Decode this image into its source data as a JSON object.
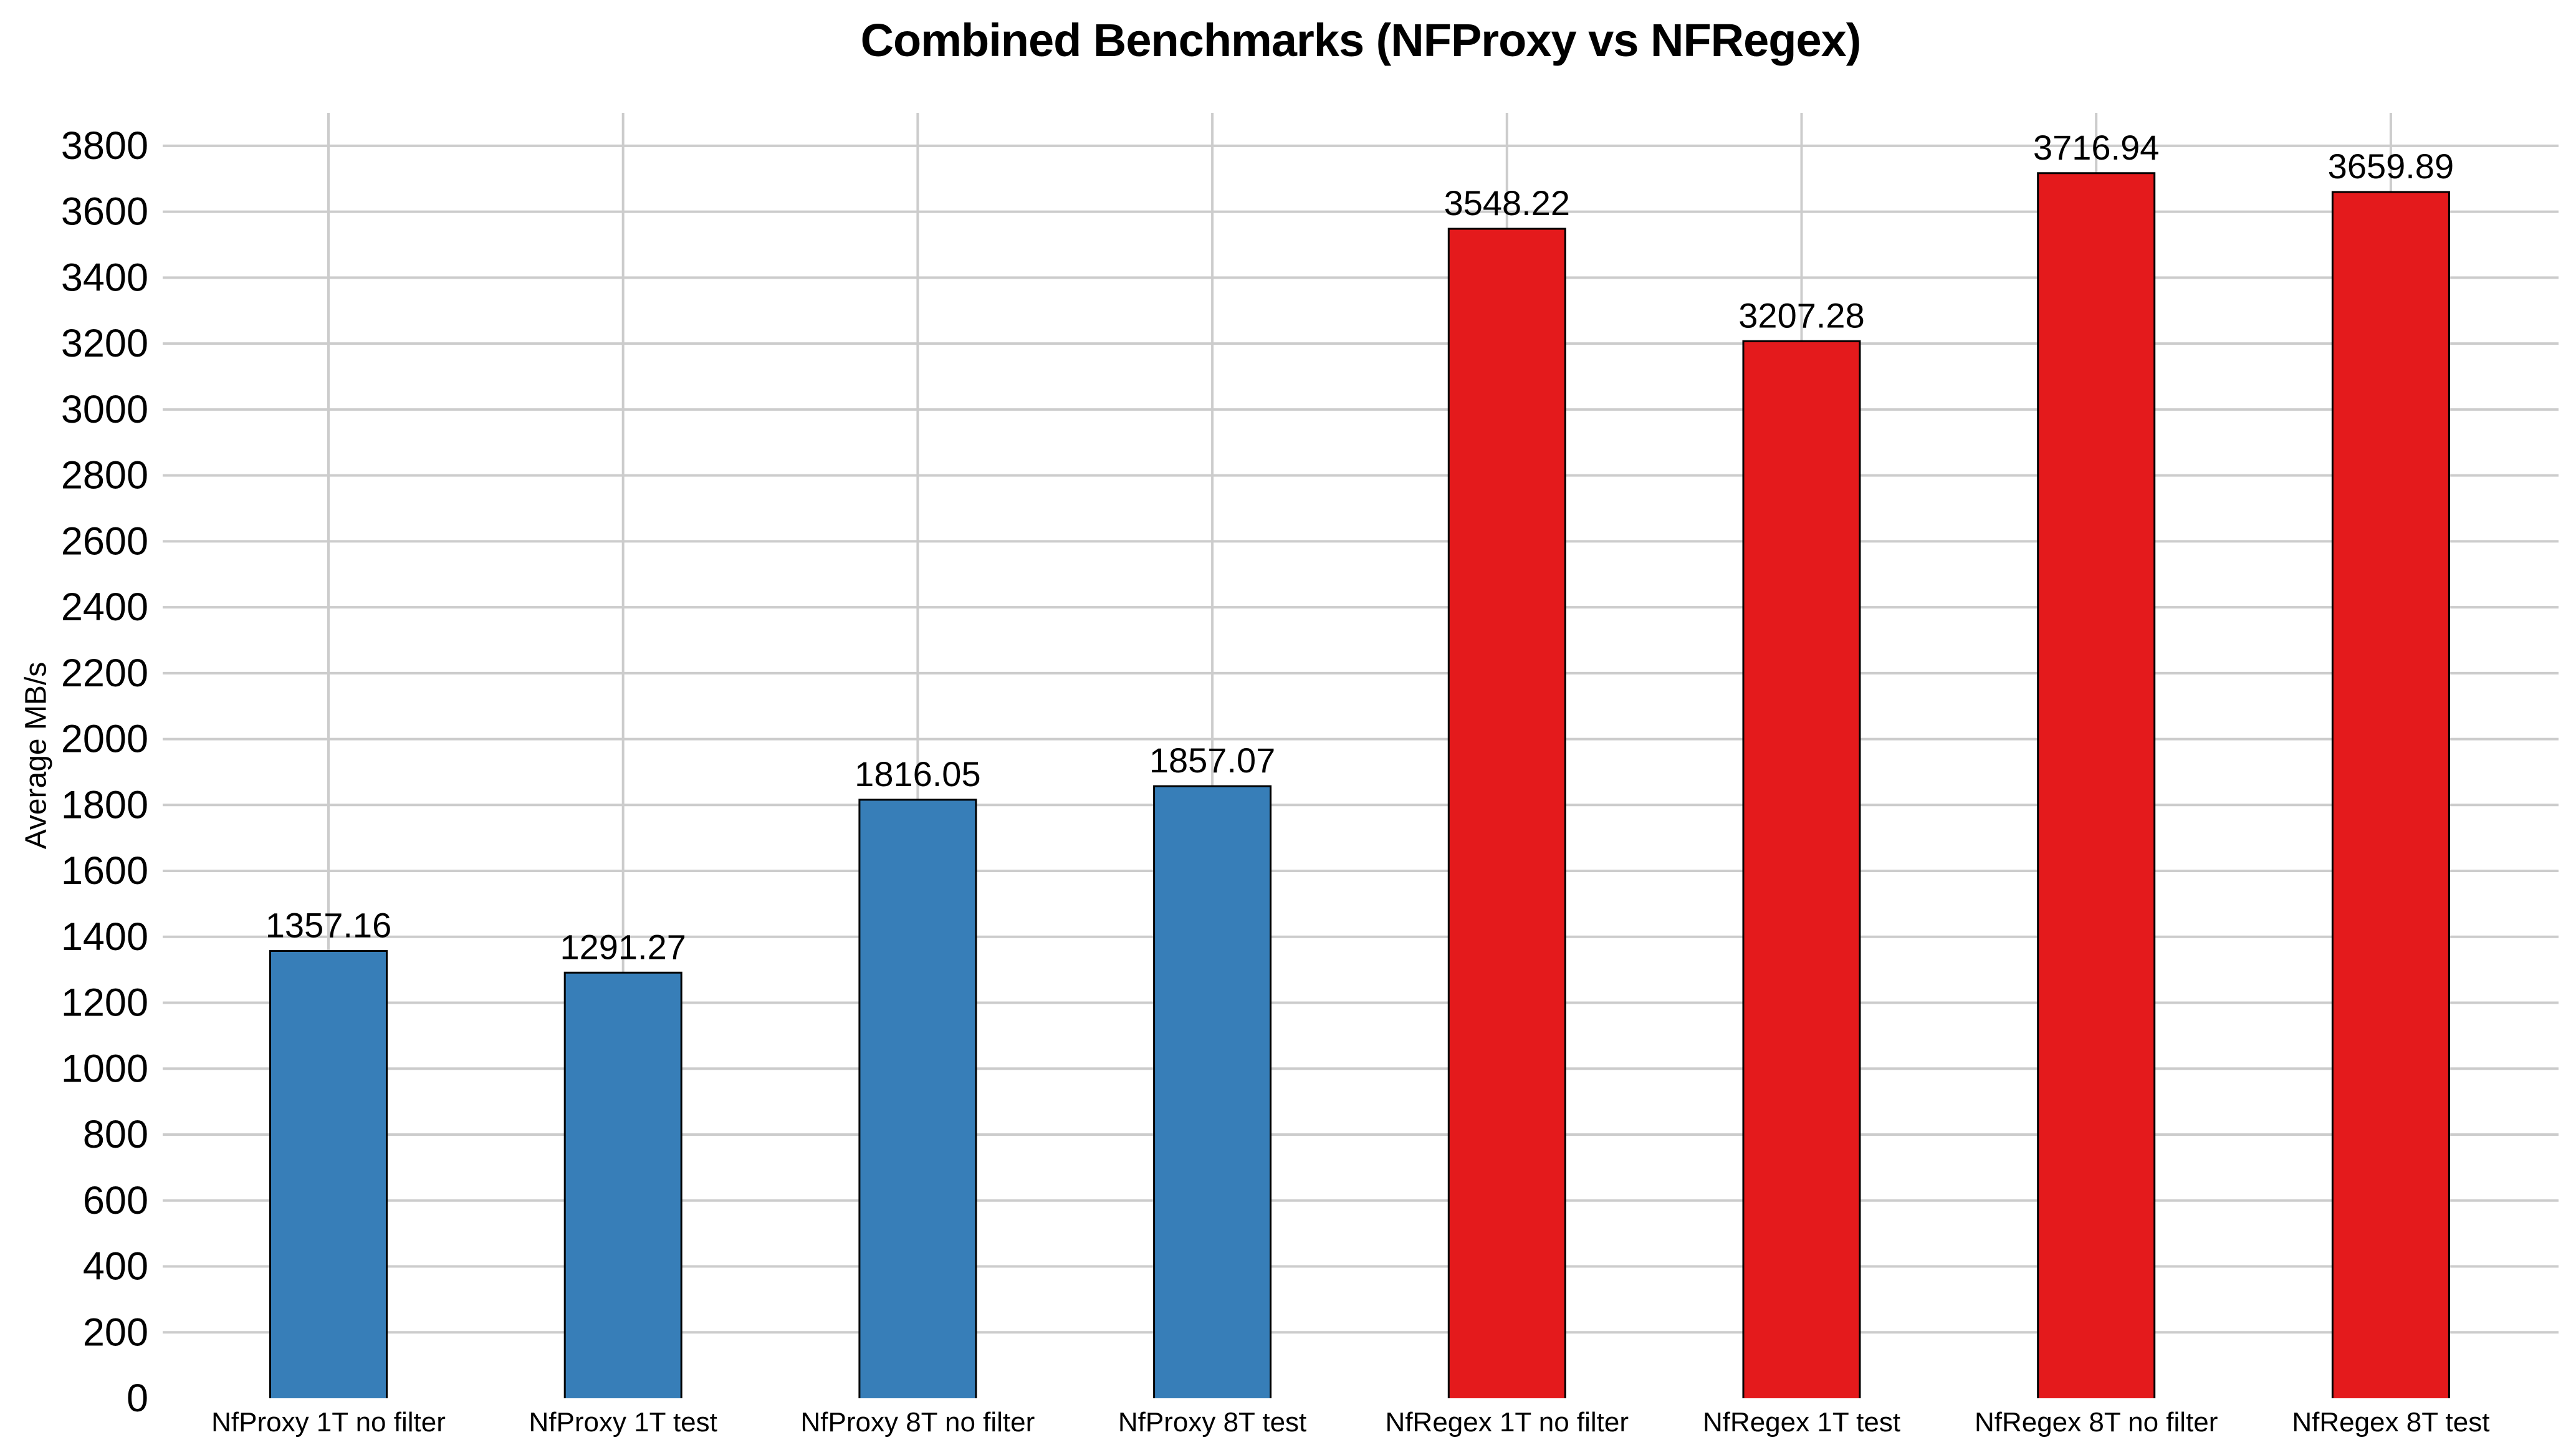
{
  "chart_data": {
    "type": "bar",
    "title": "Combined Benchmarks (NFProxy vs NFRegex)",
    "xlabel": "",
    "ylabel": "Average MB/s",
    "categories": [
      "NfProxy 1T no filter",
      "NfProxy 1T test",
      "NfProxy 8T no filter",
      "NfProxy 8T test",
      "NfRegex 1T no filter",
      "NfRegex 1T test",
      "NfRegex 8T no filter",
      "NfRegex 8T test"
    ],
    "values": [
      1357.16,
      1291.27,
      1816.05,
      1857.07,
      3548.22,
      3207.28,
      3716.94,
      3659.89
    ],
    "value_labels": [
      "1357.16",
      "1291.27",
      "1816.05",
      "1857.07",
      "3548.22",
      "3207.28",
      "3716.94",
      "3659.89"
    ],
    "bar_colors": [
      "#377eb8",
      "#377eb8",
      "#377eb8",
      "#377eb8",
      "#e41a1c",
      "#e41a1c",
      "#e41a1c",
      "#e41a1c"
    ],
    "series_colors": {
      "NfProxy": "#377eb8",
      "NfRegex": "#e41a1c"
    },
    "bar_edge_color": "#000000",
    "ylim": [
      0,
      3900
    ],
    "yticks": [
      0,
      200,
      400,
      600,
      800,
      1000,
      1200,
      1400,
      1600,
      1800,
      2000,
      2200,
      2400,
      2600,
      2800,
      3000,
      3200,
      3400,
      3600,
      3800
    ],
    "grid": true,
    "gridline_color": "#cccccc",
    "background_color": "#ffffff",
    "legend_position": "none"
  }
}
